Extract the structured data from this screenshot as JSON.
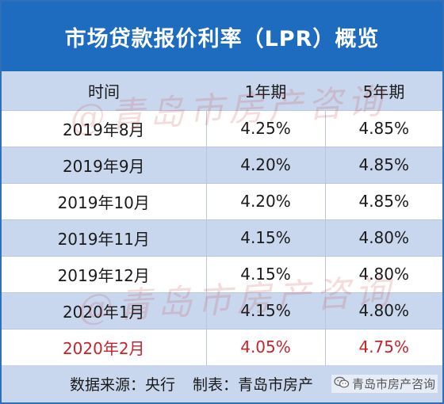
{
  "title": "市场贷款报价利率（LPR）概览",
  "table": {
    "headers": [
      "时间",
      "1年期",
      "5年期"
    ],
    "rows": [
      {
        "month": "2019年8月",
        "y1": "4.25%",
        "y5": "4.85%"
      },
      {
        "month": "2019年9月",
        "y1": "4.20%",
        "y5": "4.85%"
      },
      {
        "month": "2019年10月",
        "y1": "4.20%",
        "y5": "4.85%"
      },
      {
        "month": "2019年11月",
        "y1": "4.15%",
        "y5": "4.80%"
      },
      {
        "month": "2019年12月",
        "y1": "4.15%",
        "y5": "4.80%"
      },
      {
        "month": "2020年1月",
        "y1": "4.15%",
        "y5": "4.80%"
      },
      {
        "month": "2020年2月",
        "y1": "4.05%",
        "y5": "4.75%"
      }
    ]
  },
  "footer": {
    "source": "数据来源：央行",
    "made_by": "制表：青岛市房产"
  },
  "watermark": "@青岛市房产咨询",
  "wechat_label": "青岛市房产咨询",
  "colors": {
    "header_blue": "#1e6cc0",
    "row_shade": "#c9d7ee",
    "highlight_red": "#c8232c"
  },
  "icons": [
    "wechat-icon"
  ]
}
